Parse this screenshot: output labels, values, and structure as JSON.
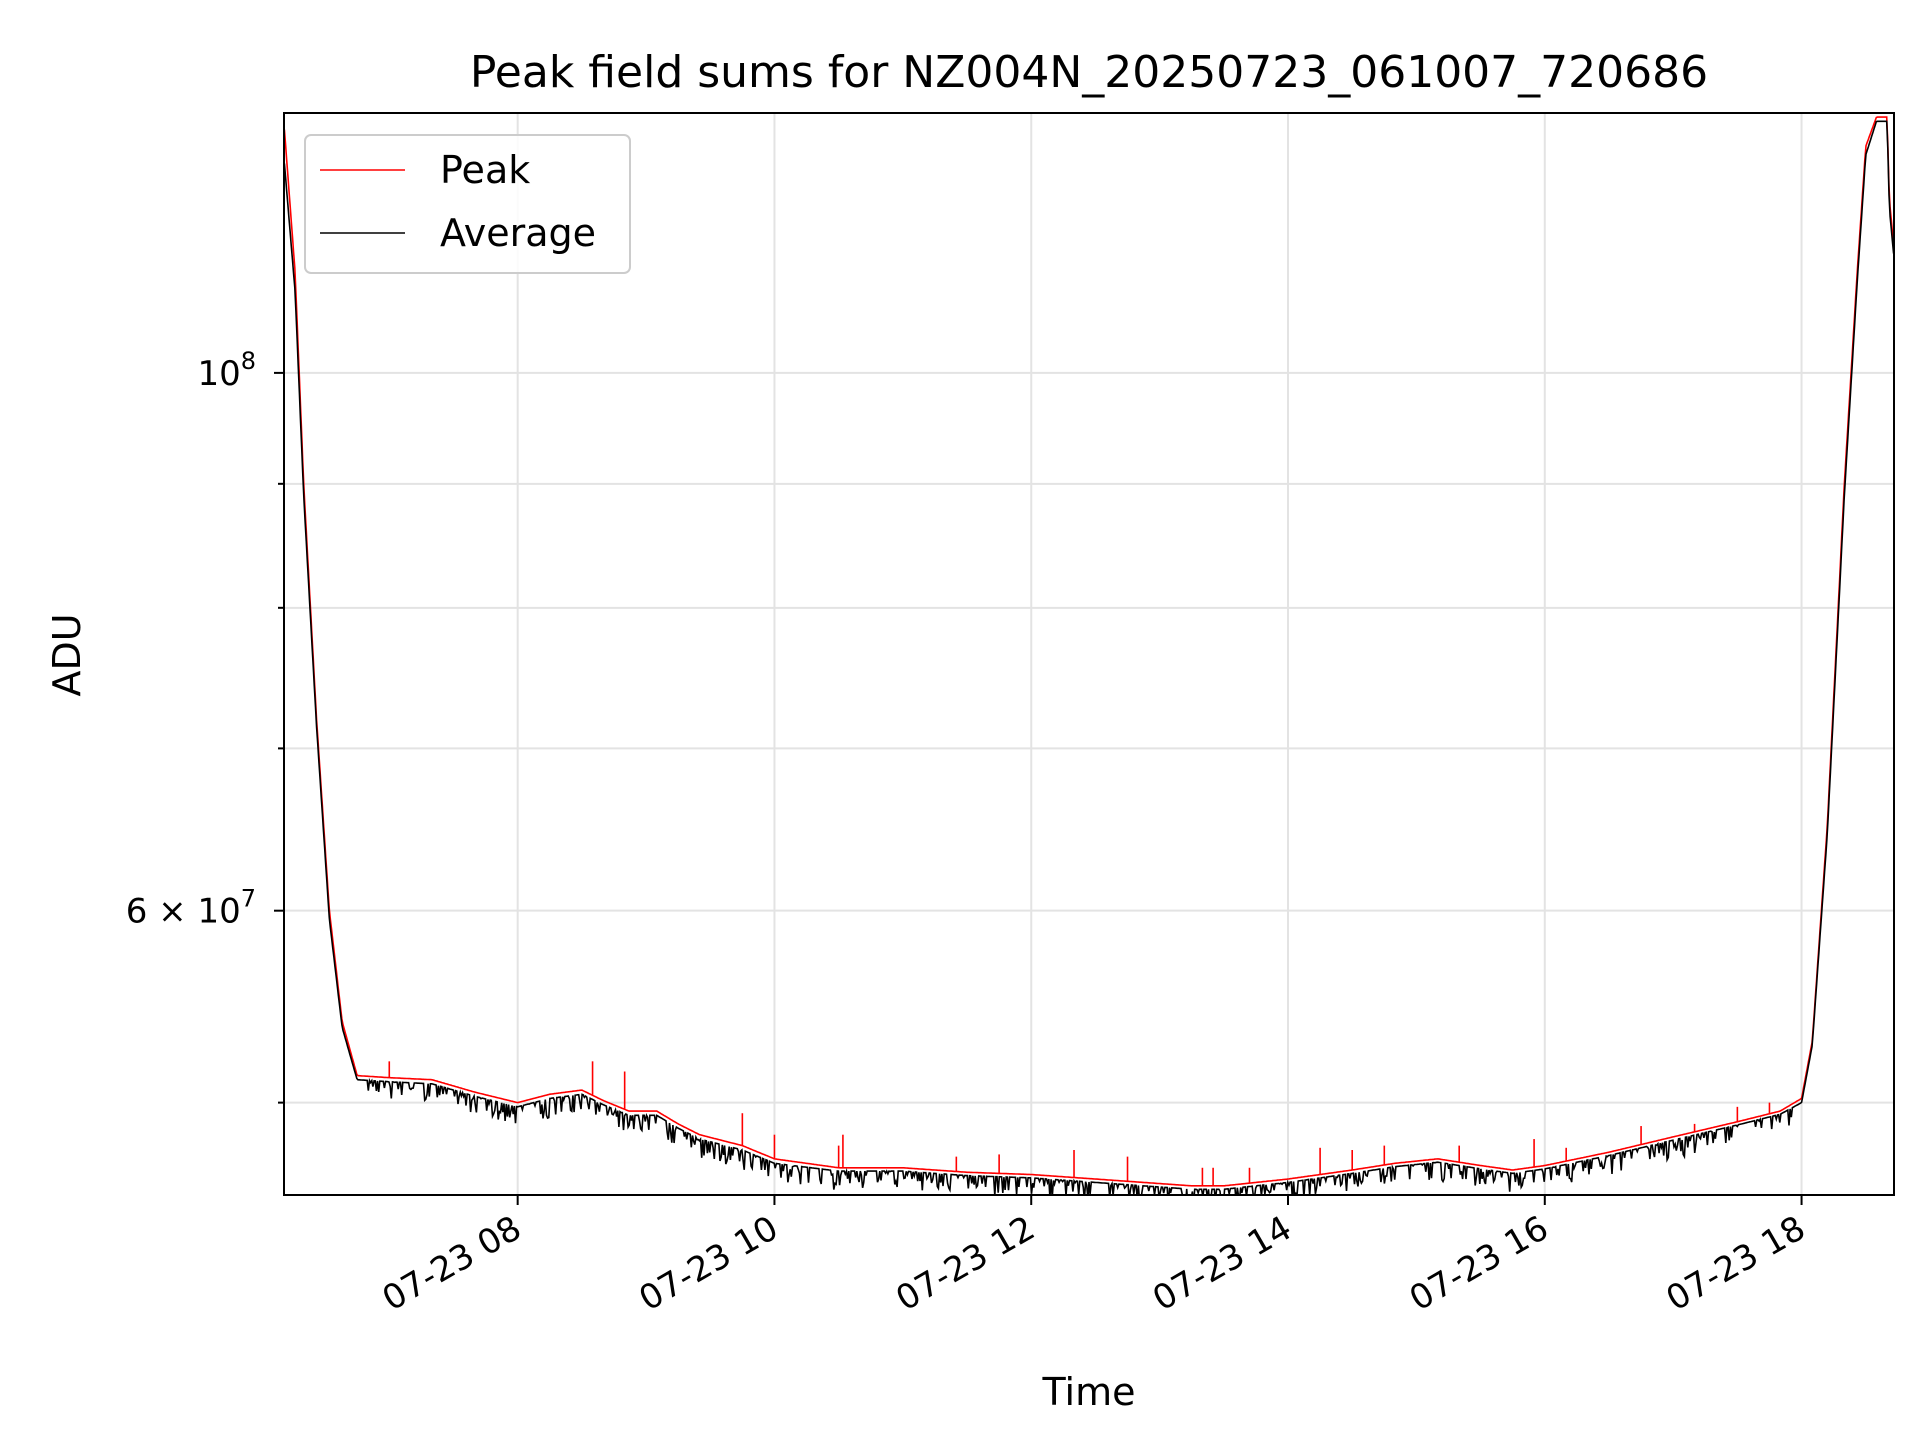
{
  "chart_data": {
    "type": "line",
    "title": "Peak field sums for NZ004N_20250723_061007_720686",
    "xlabel": "Time",
    "ylabel": "ADU",
    "yscale": "log",
    "ylim": [
      45800000,
      128000000
    ],
    "x_unit": "hours since midnight 2025-07-23",
    "xlim_hours": [
      6.18,
      18.72
    ],
    "grid": true,
    "legend_position": "upper-left",
    "x_ticks": [
      {
        "hours": 8,
        "label": "07-23 08"
      },
      {
        "hours": 10,
        "label": "07-23 10"
      },
      {
        "hours": 12,
        "label": "07-23 12"
      },
      {
        "hours": 14,
        "label": "07-23 14"
      },
      {
        "hours": 16,
        "label": "07-23 16"
      },
      {
        "hours": 18,
        "label": "07-23 18"
      }
    ],
    "y_ticks_major": [
      {
        "value": 60000000,
        "label": "6 × 10",
        "exp": "7"
      },
      {
        "value": 100000000,
        "label": "10",
        "exp": "8"
      }
    ],
    "y_ticks_minor": [
      50000000,
      70000000,
      80000000,
      90000000
    ],
    "series": [
      {
        "name": "Peak",
        "color": "#ff0000",
        "x": [
          "07-23 06:11",
          "07-23 06:16",
          "07-23 06:20",
          "07-23 06:26",
          "07-23 06:32",
          "07-23 06:38",
          "07-23 06:45",
          "07-23 07:00",
          "07-23 07:20",
          "07-23 07:40",
          "07-23 08:00",
          "07-23 08:15",
          "07-23 08:30",
          "07-23 08:40",
          "07-23 08:52",
          "07-23 09:05",
          "07-23 09:15",
          "07-23 09:25",
          "07-23 09:45",
          "07-23 10:00",
          "07-23 10:30",
          "07-23 11:00",
          "07-23 11:30",
          "07-23 12:00",
          "07-23 12:30",
          "07-23 13:00",
          "07-23 13:15",
          "07-23 13:30",
          "07-23 14:00",
          "07-23 14:30",
          "07-23 14:50",
          "07-23 15:10",
          "07-23 15:30",
          "07-23 15:45",
          "07-23 16:00",
          "07-23 16:30",
          "07-23 17:00",
          "07-23 17:30",
          "07-23 17:50",
          "07-23 18:00",
          "07-23 18:05",
          "07-23 18:12",
          "07-23 18:20",
          "07-23 18:26",
          "07-23 18:30",
          "07-23 18:35",
          "07-23 18:40",
          "07-23 18:41",
          "07-23 18:43"
        ],
        "y": [
          126000000,
          110000000,
          90000000,
          72000000,
          60000000,
          54000000,
          51300000,
          51200000,
          51100000,
          50500000,
          50000000,
          50400000,
          50600000,
          50100000,
          49600000,
          49600000,
          49000000,
          48500000,
          48000000,
          47400000,
          47000000,
          47000000,
          46800000,
          46700000,
          46500000,
          46300000,
          46200000,
          46200000,
          46500000,
          46900000,
          47200000,
          47400000,
          47100000,
          46900000,
          47100000,
          47700000,
          48400000,
          49100000,
          49600000,
          50200000,
          53000000,
          65000000,
          90000000,
          110000000,
          124000000,
          127500000,
          127500000,
          118000000,
          113000000
        ],
        "spikes": [
          [
            "07-23 07:00",
            52000000
          ],
          [
            "07-23 08:35",
            52000000
          ],
          [
            "07-23 08:50",
            51500000
          ],
          [
            "07-23 09:45",
            49500000
          ],
          [
            "07-23 10:00",
            48500000
          ],
          [
            "07-23 10:30",
            48000000
          ],
          [
            "07-23 10:32",
            48500000
          ],
          [
            "07-23 11:25",
            47500000
          ],
          [
            "07-23 11:45",
            47600000
          ],
          [
            "07-23 12:20",
            47800000
          ],
          [
            "07-23 12:45",
            47500000
          ],
          [
            "07-23 13:20",
            47000000
          ],
          [
            "07-23 13:25",
            47000000
          ],
          [
            "07-23 13:42",
            47000000
          ],
          [
            "07-23 14:15",
            47900000
          ],
          [
            "07-23 14:30",
            47800000
          ],
          [
            "07-23 14:45",
            48000000
          ],
          [
            "07-23 15:20",
            48000000
          ],
          [
            "07-23 15:55",
            48300000
          ],
          [
            "07-23 16:10",
            47900000
          ],
          [
            "07-23 16:45",
            48900000
          ],
          [
            "07-23 17:10",
            49000000
          ],
          [
            "07-23 17:30",
            49800000
          ],
          [
            "07-23 17:45",
            50000000
          ]
        ]
      },
      {
        "name": "Average",
        "color": "#000000",
        "x": [
          "07-23 06:11",
          "07-23 06:16",
          "07-23 06:20",
          "07-23 06:26",
          "07-23 06:32",
          "07-23 06:38",
          "07-23 06:45",
          "07-23 07:00",
          "07-23 07:20",
          "07-23 07:40",
          "07-23 08:00",
          "07-23 08:15",
          "07-23 08:30",
          "07-23 08:40",
          "07-23 08:52",
          "07-23 09:05",
          "07-23 09:15",
          "07-23 09:25",
          "07-23 09:45",
          "07-23 10:00",
          "07-23 10:30",
          "07-23 11:00",
          "07-23 11:30",
          "07-23 12:00",
          "07-23 12:30",
          "07-23 13:00",
          "07-23 13:15",
          "07-23 13:30",
          "07-23 14:00",
          "07-23 14:30",
          "07-23 14:50",
          "07-23 15:10",
          "07-23 15:30",
          "07-23 15:45",
          "07-23 16:00",
          "07-23 16:30",
          "07-23 17:00",
          "07-23 17:30",
          "07-23 17:50",
          "07-23 18:00",
          "07-23 18:05",
          "07-23 18:12",
          "07-23 18:20",
          "07-23 18:26",
          "07-23 18:30",
          "07-23 18:35",
          "07-23 18:40",
          "07-23 18:41",
          "07-23 18:43"
        ],
        "y": [
          122000000,
          108000000,
          89000000,
          71500000,
          59500000,
          53700000,
          51100000,
          51000000,
          50900000,
          50300000,
          49800000,
          50200000,
          50400000,
          49900000,
          49400000,
          49400000,
          48800000,
          48300000,
          47800000,
          47200000,
          46850000,
          46850000,
          46650000,
          46550000,
          46350000,
          46150000,
          46050000,
          46050000,
          46350000,
          46750000,
          47050000,
          47250000,
          46950000,
          46750000,
          46950000,
          47550000,
          48250000,
          48950000,
          49450000,
          50000000,
          52800000,
          64500000,
          89000000,
          109000000,
          123000000,
          127000000,
          127000000,
          117000000,
          112000000
        ]
      }
    ]
  }
}
